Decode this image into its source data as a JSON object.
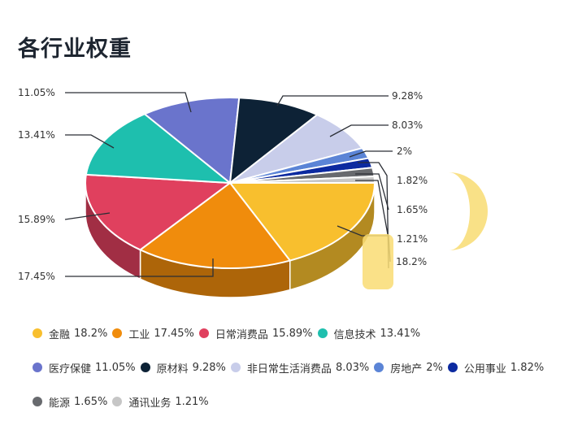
{
  "title": "各行业权重",
  "chart_data": {
    "type": "pie",
    "style": "3d",
    "title": "各行业权重",
    "legend_position": "bottom",
    "categories": [
      "金融",
      "工业",
      "日常消费品",
      "信息技术",
      "医疗保健",
      "原材料",
      "非日常生活消费品",
      "房地产",
      "公用事业",
      "能源",
      "通讯业务"
    ],
    "values": [
      18.2,
      17.45,
      15.89,
      13.41,
      11.05,
      9.28,
      8.03,
      2,
      1.82,
      1.65,
      1.21
    ],
    "labels": [
      "18.2%",
      "17.45%",
      "15.89%",
      "13.41%",
      "11.05%",
      "9.28%",
      "8.03%",
      "2%",
      "1.82%",
      "1.65%",
      "1.21%"
    ],
    "colors": [
      "#f8bf2e",
      "#f08c0c",
      "#e0405e",
      "#1ebfae",
      "#6a74cc",
      "#0d2236",
      "#c8cdea",
      "#5b84d6",
      "#0c2aa0",
      "#686a6e",
      "#c6c6c6"
    ]
  },
  "legend": {
    "rows": [
      [
        {
          "name": "金融",
          "pct": "18.2%",
          "color": "#f8bf2e"
        },
        {
          "name": "工业",
          "pct": "17.45%",
          "color": "#f08c0c"
        },
        {
          "name": "日常消费品",
          "pct": "15.89%",
          "color": "#e0405e"
        },
        {
          "name": "信息技术",
          "pct": "13.41%",
          "color": "#1ebfae"
        }
      ],
      [
        {
          "name": "医疗保健",
          "pct": "11.05%",
          "color": "#6a74cc"
        },
        {
          "name": "原材料",
          "pct": "9.28%",
          "color": "#0d2236"
        },
        {
          "name": "非日常生活消费品",
          "pct": "8.03%",
          "color": "#c8cdea"
        },
        {
          "name": "房地产",
          "pct": "2%",
          "color": "#5b84d6"
        },
        {
          "name": "公用事业",
          "pct": "1.82%",
          "color": "#0c2aa0"
        }
      ],
      [
        {
          "name": "能源",
          "pct": "1.65%",
          "color": "#686a6e"
        },
        {
          "name": "通讯业务",
          "pct": "1.21%",
          "color": "#c6c6c6"
        }
      ]
    ]
  }
}
